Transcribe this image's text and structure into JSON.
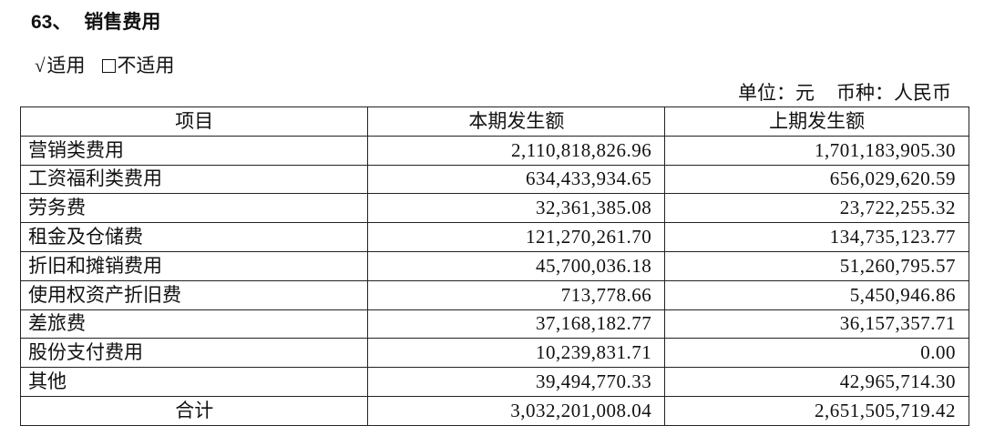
{
  "section": {
    "number": "63、",
    "title": "销售费用"
  },
  "applicability": {
    "checked_mark": "√",
    "applicable": "适用",
    "not_applicable": "不适用"
  },
  "unit": {
    "unit_label": "单位：元",
    "currency_label": "币种：人民币"
  },
  "table": {
    "headers": [
      "项目",
      "本期发生额",
      "上期发生额"
    ],
    "rows": [
      {
        "item": "营销类费用",
        "current": "2,110,818,826.96",
        "previous": "1,701,183,905.30"
      },
      {
        "item": "工资福利类费用",
        "current": "634,433,934.65",
        "previous": "656,029,620.59"
      },
      {
        "item": "劳务费",
        "current": "32,361,385.08",
        "previous": "23,722,255.32"
      },
      {
        "item": "租金及仓储费",
        "current": "121,270,261.70",
        "previous": "134,735,123.77"
      },
      {
        "item": "折旧和摊销费用",
        "current": "45,700,036.18",
        "previous": "51,260,795.57"
      },
      {
        "item": "使用权资产折旧费",
        "current": "713,778.66",
        "previous": "5,450,946.86"
      },
      {
        "item": "差旅费",
        "current": "37,168,182.77",
        "previous": "36,157,357.71"
      },
      {
        "item": "股份支付费用",
        "current": "10,239,831.71",
        "previous": "0.00"
      },
      {
        "item": "其他",
        "current": "39,494,770.33",
        "previous": "42,965,714.30"
      }
    ],
    "total": {
      "item": "合计",
      "current": "3,032,201,008.04",
      "previous": "2,651,505,719.42"
    }
  }
}
